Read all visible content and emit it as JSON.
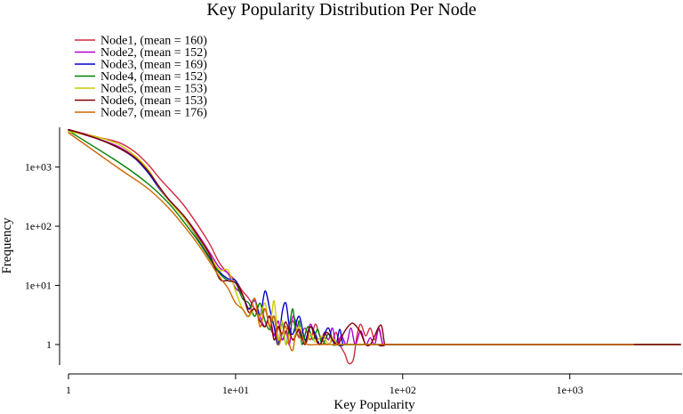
{
  "chart_data": {
    "type": "line",
    "title": "Key Popularity Distribution Per Node",
    "xlabel": "Key Popularity",
    "ylabel": "Frequency",
    "xscale": "log",
    "yscale": "log",
    "xlim": [
      1,
      4700
    ],
    "ylim": [
      0.45,
      4700
    ],
    "grid": false,
    "legend_position": "top-left",
    "x_ticks": [
      {
        "value": 1,
        "label": "1"
      },
      {
        "value": 10,
        "label": "1e+01"
      },
      {
        "value": 100,
        "label": "1e+02"
      },
      {
        "value": 1000,
        "label": "1e+03"
      }
    ],
    "y_ticks": [
      {
        "value": 1,
        "label": "1"
      },
      {
        "value": 10,
        "label": "1e+01"
      },
      {
        "value": 100,
        "label": "1e+02"
      },
      {
        "value": 1000,
        "label": "1e+03"
      }
    ],
    "series": [
      {
        "name": "Node1, (mean = 160)",
        "color": "#d2293f",
        "points": [
          [
            1,
            4300
          ],
          [
            1.5,
            3200
          ],
          [
            2,
            2600
          ],
          [
            2.5,
            1800
          ],
          [
            3,
            1100
          ],
          [
            3.5,
            650
          ],
          [
            4,
            430
          ],
          [
            4.5,
            300
          ],
          [
            5,
            210
          ],
          [
            6,
            100
          ],
          [
            7,
            50
          ],
          [
            8,
            24
          ],
          [
            9,
            16
          ],
          [
            10,
            12
          ],
          [
            11,
            8
          ],
          [
            12,
            6
          ],
          [
            13,
            4
          ],
          [
            14,
            3
          ],
          [
            15,
            4
          ],
          [
            16,
            2
          ],
          [
            17,
            1.5
          ],
          [
            18,
            2
          ],
          [
            19,
            1.2
          ],
          [
            20,
            1.6
          ],
          [
            22,
            2.5
          ],
          [
            24,
            1.3
          ],
          [
            26,
            1.9
          ],
          [
            28,
            1.2
          ],
          [
            30,
            2.2
          ],
          [
            32,
            1.4
          ],
          [
            35,
            1
          ],
          [
            38,
            1.2
          ],
          [
            40,
            1.6
          ],
          [
            42,
            1
          ],
          [
            45,
            0.7
          ],
          [
            47,
            0.5
          ],
          [
            49,
            0.48
          ],
          [
            51,
            0.6
          ],
          [
            53,
            1.3
          ],
          [
            56,
            2.2
          ],
          [
            60,
            1.4
          ],
          [
            64,
            1.9
          ],
          [
            68,
            1.2
          ],
          [
            72,
            1.8
          ],
          [
            76,
            1
          ],
          [
            80,
            1
          ],
          [
            120,
            1
          ],
          [
            300,
            1
          ],
          [
            1000,
            1
          ],
          [
            4600,
            1
          ]
        ]
      },
      {
        "name": "Node2, (mean = 152)",
        "color": "#b000d0",
        "points": [
          [
            1,
            4200
          ],
          [
            1.5,
            3000
          ],
          [
            2,
            2200
          ],
          [
            2.5,
            1450
          ],
          [
            3,
            850
          ],
          [
            3.5,
            460
          ],
          [
            4,
            280
          ],
          [
            5,
            140
          ],
          [
            6,
            70
          ],
          [
            7,
            36
          ],
          [
            8,
            20
          ],
          [
            9,
            16
          ],
          [
            10,
            9
          ],
          [
            11,
            7
          ],
          [
            12,
            4
          ],
          [
            13,
            5.5
          ],
          [
            14,
            3
          ],
          [
            15,
            2
          ],
          [
            16,
            3
          ],
          [
            17,
            1.4
          ],
          [
            18,
            2.5
          ],
          [
            19,
            1.2
          ],
          [
            20,
            1.7
          ],
          [
            21,
            1
          ],
          [
            22,
            3
          ],
          [
            24,
            1.6
          ],
          [
            26,
            1.1
          ],
          [
            28,
            2.2
          ],
          [
            30,
            1.3
          ],
          [
            32,
            1
          ],
          [
            34,
            1.6
          ],
          [
            36,
            1.2
          ],
          [
            38,
            1.9
          ],
          [
            40,
            1
          ],
          [
            43,
            1.4
          ],
          [
            46,
            1
          ],
          [
            49,
            1.9
          ],
          [
            52,
            1
          ],
          [
            56,
            1.7
          ],
          [
            60,
            1
          ],
          [
            64,
            1.3
          ],
          [
            68,
            1
          ],
          [
            72,
            1.9
          ],
          [
            76,
            1
          ],
          [
            80,
            1
          ],
          [
            200,
            1
          ],
          [
            1000,
            1
          ],
          [
            4600,
            1
          ]
        ]
      },
      {
        "name": "Node3, (mean = 169)",
        "color": "#0000cc",
        "points": [
          [
            1,
            4300
          ],
          [
            1.5,
            3000
          ],
          [
            2,
            2100
          ],
          [
            2.5,
            1400
          ],
          [
            3,
            800
          ],
          [
            3.5,
            430
          ],
          [
            4,
            270
          ],
          [
            5,
            130
          ],
          [
            6,
            60
          ],
          [
            7,
            30
          ],
          [
            8,
            17
          ],
          [
            9,
            13
          ],
          [
            10,
            12
          ],
          [
            11,
            7
          ],
          [
            12,
            4
          ],
          [
            13,
            6
          ],
          [
            14,
            3
          ],
          [
            15,
            8
          ],
          [
            16,
            4
          ],
          [
            17,
            2
          ],
          [
            18,
            1
          ],
          [
            19,
            3.5
          ],
          [
            20,
            5
          ],
          [
            21,
            2
          ],
          [
            22,
            1.5
          ],
          [
            24,
            3
          ],
          [
            26,
            1.2
          ],
          [
            28,
            2
          ],
          [
            30,
            1.5
          ],
          [
            32,
            1
          ],
          [
            34,
            1.5
          ],
          [
            36,
            1.9
          ],
          [
            38,
            1.2
          ],
          [
            40,
            1
          ],
          [
            42,
            1.8
          ],
          [
            44,
            1
          ],
          [
            47,
            1
          ],
          [
            200,
            1
          ],
          [
            1000,
            1
          ],
          [
            4600,
            1
          ]
        ]
      },
      {
        "name": "Node4, (mean = 152)",
        "color": "#008000",
        "points": [
          [
            1,
            4100
          ],
          [
            2,
            1200
          ],
          [
            3,
            520
          ],
          [
            4,
            240
          ],
          [
            5,
            110
          ],
          [
            6,
            55
          ],
          [
            7,
            28
          ],
          [
            8,
            16
          ],
          [
            9,
            12
          ],
          [
            10,
            11
          ],
          [
            11,
            6
          ],
          [
            12,
            5
          ],
          [
            13,
            3
          ],
          [
            14,
            5
          ],
          [
            15,
            2.5
          ],
          [
            16,
            1.8
          ],
          [
            17,
            3
          ],
          [
            18,
            1.2
          ],
          [
            19,
            2.3
          ],
          [
            20,
            1
          ],
          [
            21,
            2
          ],
          [
            22,
            4
          ],
          [
            23,
            1.5
          ],
          [
            24,
            2.5
          ],
          [
            25,
            1
          ],
          [
            27,
            2
          ],
          [
            29,
            1.2
          ],
          [
            31,
            1.8
          ],
          [
            33,
            1
          ],
          [
            36,
            1.5
          ],
          [
            40,
            1
          ],
          [
            44,
            1
          ],
          [
            200,
            1
          ],
          [
            1000,
            1
          ],
          [
            4600,
            1
          ]
        ]
      },
      {
        "name": "Node5, (mean = 153)",
        "color": "#cccc00",
        "points": [
          [
            1,
            4000
          ],
          [
            1.5,
            3200
          ],
          [
            2,
            2400
          ],
          [
            2.5,
            1550
          ],
          [
            3,
            900
          ],
          [
            3.5,
            450
          ],
          [
            4,
            270
          ],
          [
            5,
            130
          ],
          [
            6,
            62
          ],
          [
            7,
            32
          ],
          [
            8,
            18
          ],
          [
            9,
            18
          ],
          [
            10,
            8
          ],
          [
            11,
            4
          ],
          [
            12,
            3
          ],
          [
            13,
            4
          ],
          [
            14,
            3
          ],
          [
            15,
            5
          ],
          [
            16,
            2
          ],
          [
            17,
            5.5
          ],
          [
            18,
            1.2
          ],
          [
            19,
            2.5
          ],
          [
            20,
            1
          ],
          [
            21,
            1.5
          ],
          [
            22,
            1.2
          ],
          [
            24,
            2
          ],
          [
            26,
            1
          ],
          [
            28,
            1.5
          ],
          [
            30,
            1.1
          ],
          [
            33,
            1.4
          ],
          [
            36,
            1
          ],
          [
            38,
            1.3
          ],
          [
            41,
            1
          ],
          [
            45,
            1
          ],
          [
            200,
            1
          ],
          [
            1000,
            1
          ],
          [
            4600,
            1
          ]
        ]
      },
      {
        "name": "Node6, (mean = 153)",
        "color": "#800000",
        "points": [
          [
            1,
            4300
          ],
          [
            1.5,
            3000
          ],
          [
            2,
            2100
          ],
          [
            2.5,
            1450
          ],
          [
            3,
            850
          ],
          [
            3.5,
            460
          ],
          [
            4,
            280
          ],
          [
            5,
            140
          ],
          [
            6,
            66
          ],
          [
            7,
            33
          ],
          [
            8,
            13
          ],
          [
            9,
            12
          ],
          [
            10,
            11
          ],
          [
            11,
            7
          ],
          [
            12,
            3.5
          ],
          [
            13,
            4
          ],
          [
            14,
            2.5
          ],
          [
            15,
            2
          ],
          [
            16,
            3
          ],
          [
            17,
            1.2
          ],
          [
            18,
            2
          ],
          [
            19,
            1.5
          ],
          [
            20,
            2.4
          ],
          [
            22,
            1.2
          ],
          [
            24,
            1.8
          ],
          [
            26,
            1
          ],
          [
            28,
            2
          ],
          [
            30,
            1.3
          ],
          [
            32,
            1
          ],
          [
            35,
            1.6
          ],
          [
            38,
            1.2
          ],
          [
            41,
            1
          ],
          [
            44,
            1.5
          ],
          [
            47,
            2
          ],
          [
            50,
            2.3
          ],
          [
            53,
            2
          ],
          [
            56,
            1.6
          ],
          [
            60,
            1
          ],
          [
            64,
            1
          ],
          [
            68,
            1.4
          ],
          [
            72,
            2
          ],
          [
            75,
            2
          ],
          [
            78,
            1
          ],
          [
            80,
            1
          ],
          [
            300,
            1
          ],
          [
            1000,
            1
          ],
          [
            4600,
            1
          ]
        ]
      },
      {
        "name": "Node7, (mean = 176)",
        "color": "#cc6600",
        "points": [
          [
            1,
            3800
          ],
          [
            2,
            950
          ],
          [
            3,
            430
          ],
          [
            4,
            200
          ],
          [
            5,
            95
          ],
          [
            6,
            48
          ],
          [
            7,
            25
          ],
          [
            8,
            14
          ],
          [
            9,
            9
          ],
          [
            10,
            5
          ],
          [
            11,
            4
          ],
          [
            12,
            3
          ],
          [
            13,
            6
          ],
          [
            14,
            2
          ],
          [
            15,
            4
          ],
          [
            16,
            2
          ],
          [
            17,
            3
          ],
          [
            18,
            1
          ],
          [
            19,
            1.5
          ],
          [
            20,
            2
          ],
          [
            21,
            1
          ],
          [
            22,
            0.8
          ],
          [
            23,
            1.5
          ],
          [
            25,
            1.2
          ],
          [
            27,
            1
          ],
          [
            30,
            1
          ],
          [
            35,
            1
          ],
          [
            40,
            1
          ],
          [
            200,
            1
          ],
          [
            1000,
            1
          ],
          [
            2400,
            1
          ]
        ]
      }
    ]
  }
}
